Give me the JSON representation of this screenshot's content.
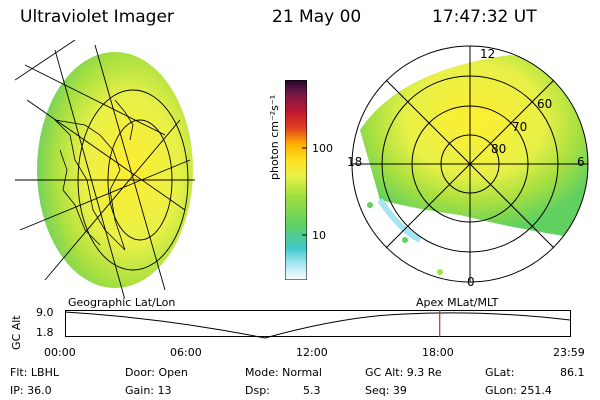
{
  "header": {
    "title": "Ultraviolet Imager",
    "date": "21 May 00",
    "time": "17:47:32 UT"
  },
  "colorbar": {
    "unit_label": "photon cm⁻²s⁻¹",
    "ticks": [
      "100",
      "10"
    ],
    "colors": [
      "#ffffff",
      "#a8e6ef",
      "#40c8c8",
      "#60d060",
      "#a0e040",
      "#e8f048",
      "#ffe020",
      "#ffb000",
      "#e04020",
      "#c01830",
      "#801848",
      "#200830"
    ]
  },
  "polar": {
    "mlat_labels": [
      "60",
      "70",
      "80"
    ],
    "mlt_labels": [
      "12",
      "18",
      "6",
      "0"
    ]
  },
  "coord_labels": {
    "left": "Geographic Lat/Lon",
    "right": "Apex MLat/MLT"
  },
  "altitude_plot": {
    "axis_label": "GC Alt",
    "y_ticks": [
      "9.0",
      "1.8"
    ],
    "x_ticks": [
      "00:00",
      "06:00",
      "12:00",
      "18:00",
      "23:59"
    ],
    "current_time_fraction": 0.741
  },
  "info": {
    "filter": "Flt: LBHL",
    "ip": "IP: 36.0",
    "door": "Door: Open",
    "gain": "Gain: 13",
    "mode": "Mode: Normal",
    "dsp": "Dsp:",
    "dsp_val": "5.3",
    "gc_alt": "GC Alt: 9.3 Re",
    "seq": "Seq: 39",
    "glat": "GLat:",
    "glat_val": "86.1",
    "glon": "GLon: 251.4"
  }
}
